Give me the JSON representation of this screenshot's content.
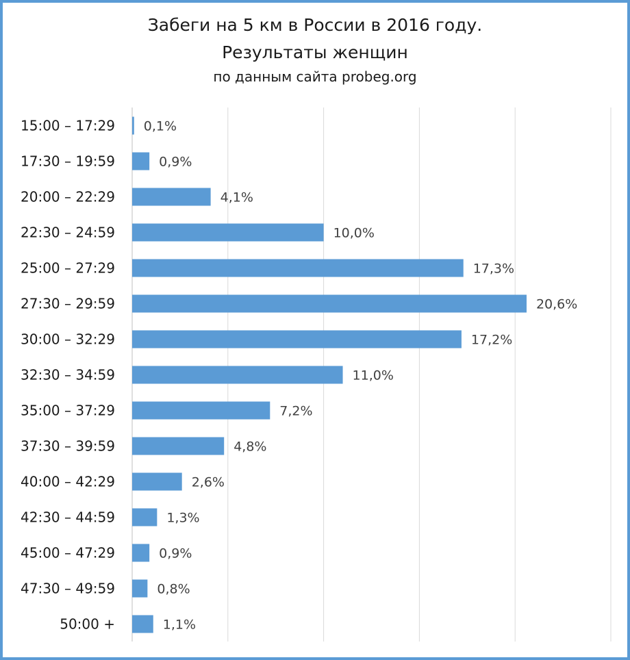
{
  "chart_data": {
    "type": "bar",
    "orientation": "horizontal",
    "title": "Забеги на 5 км в России в 2016 году.",
    "title2": "Результаты женщин",
    "subtitle": "по данным сайта probeg.org",
    "categories": [
      "15:00 – 17:29",
      "17:30 – 19:59",
      "20:00 – 22:29",
      "22:30 – 24:59",
      "25:00 – 27:29",
      "27:30 – 29:59",
      "30:00 – 32:29",
      "32:30 – 34:59",
      "35:00 – 37:29",
      "37:30 – 39:59",
      "40:00 – 42:29",
      "42:30 – 44:59",
      "45:00 – 47:29",
      "47:30 – 49:59",
      "50:00 +"
    ],
    "values": [
      0.1,
      0.9,
      4.1,
      10.0,
      17.3,
      20.6,
      17.2,
      11.0,
      7.2,
      4.8,
      2.6,
      1.3,
      0.9,
      0.8,
      1.1
    ],
    "data_labels": [
      "0,1%",
      "0,9%",
      "4,1%",
      "10,0%",
      "17,3%",
      "20,6%",
      "17,2%",
      "11,0%",
      "7,2%",
      "4,8%",
      "2,6%",
      "1,3%",
      "0,9%",
      "0,8%",
      "1,1%"
    ],
    "xlim": [
      0,
      25
    ],
    "x_gridlines": [
      0,
      5,
      10,
      15,
      20,
      25
    ],
    "grid": true,
    "bar_color": "#5b9bd5",
    "border_color": "#5b9bd5"
  }
}
